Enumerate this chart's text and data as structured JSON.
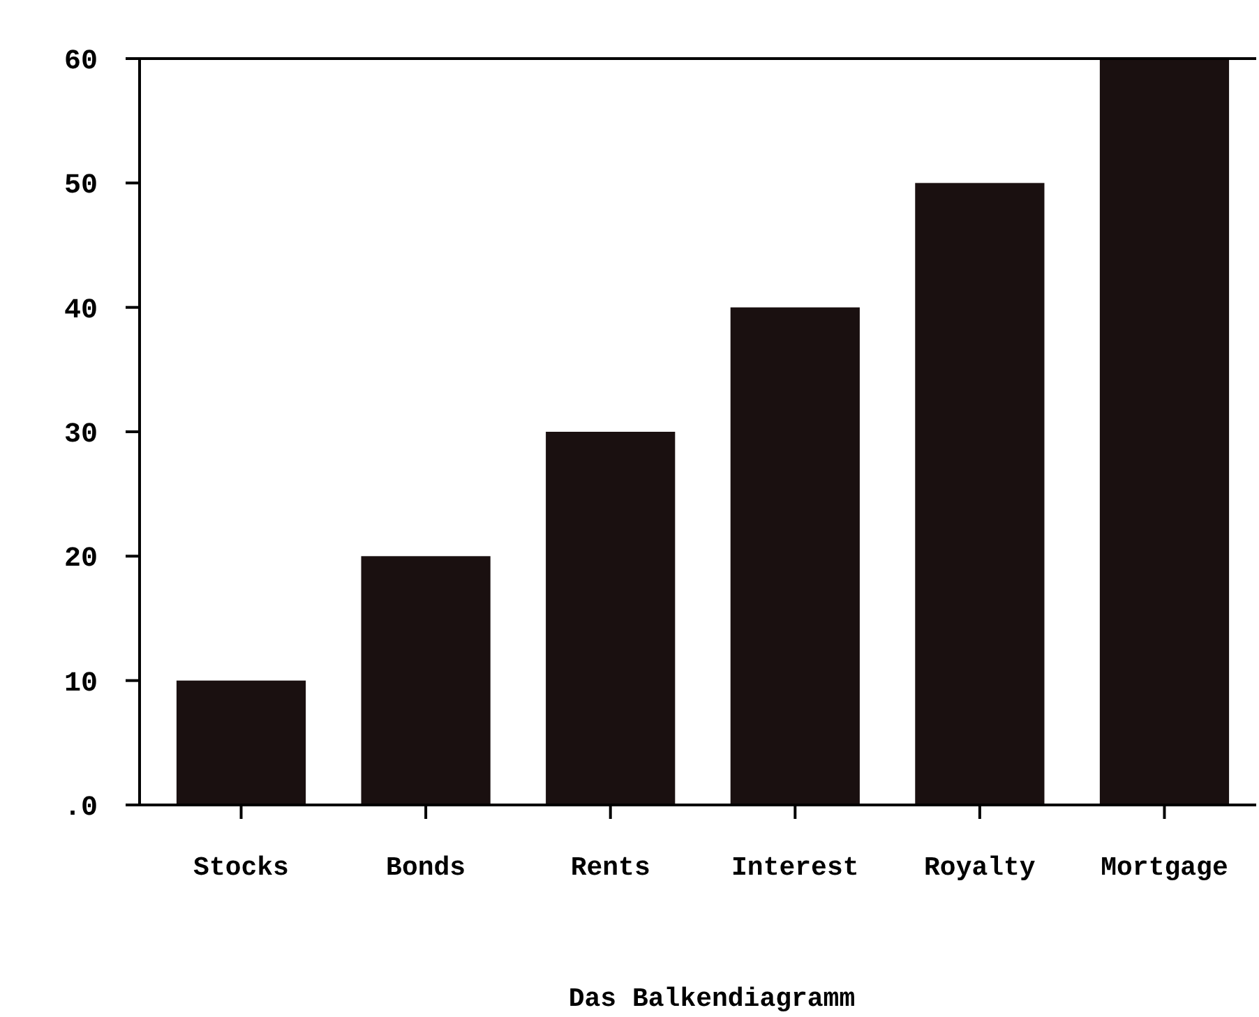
{
  "chart_data": {
    "type": "bar",
    "xlabel": "Das Balkendiagramm",
    "categories": [
      "Stocks",
      "Bonds",
      "Rents",
      "Interest",
      "Royalty",
      "Mortgage"
    ],
    "values": [
      10,
      20,
      30,
      40,
      50,
      60
    ],
    "color": "#1a1010",
    "ylim": [
      0,
      60
    ],
    "yticks": [
      {
        "value": 0,
        "label": ".0"
      },
      10,
      20,
      30,
      40,
      50,
      60
    ],
    "grid": false
  }
}
